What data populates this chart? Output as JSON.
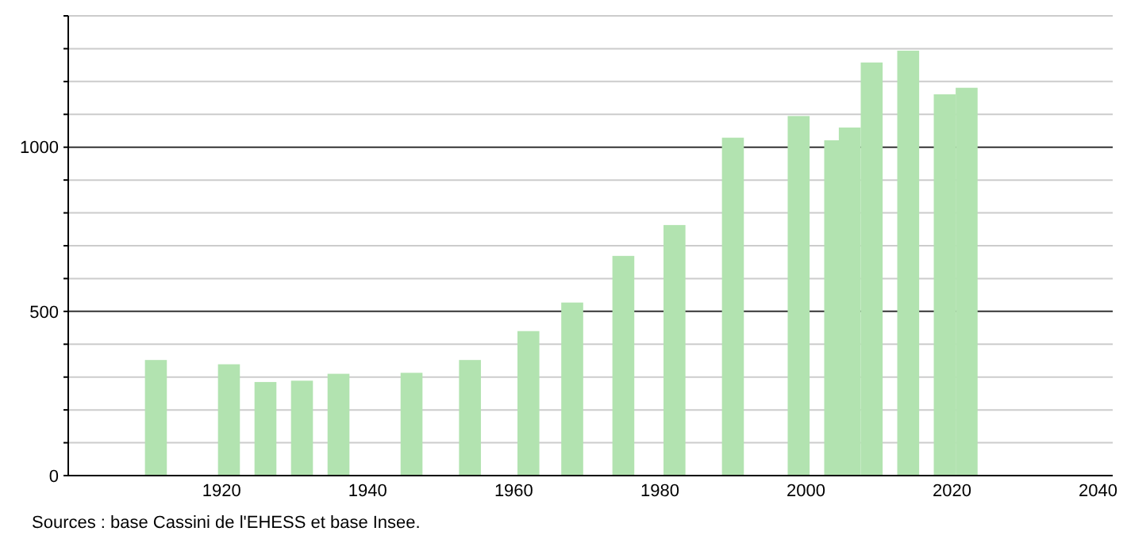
{
  "chart_data": {
    "type": "bar",
    "x": [
      1911,
      1921,
      1926,
      1931,
      1936,
      1946,
      1954,
      1962,
      1968,
      1975,
      1982,
      1990,
      1999,
      2004,
      2006,
      2009,
      2014,
      2019,
      2022
    ],
    "values": [
      352,
      339,
      285,
      289,
      310,
      313,
      352,
      440,
      527,
      669,
      763,
      1029,
      1095,
      1021,
      1060,
      1258,
      1294,
      1161,
      1181
    ],
    "color": "#b2e3b0",
    "xlim": [
      1899,
      2042
    ],
    "xticks": [
      1920,
      1940,
      1960,
      1980,
      2000,
      2020,
      2040
    ],
    "ylim": [
      0,
      1400
    ],
    "yticks": [
      0,
      {
        "value": 100,
        "label": null
      },
      {
        "value": 200,
        "label": null
      },
      {
        "value": 300,
        "label": null
      },
      {
        "value": 400,
        "label": null
      },
      500,
      {
        "value": 600,
        "label": null
      },
      {
        "value": 700,
        "label": null
      },
      {
        "value": 800,
        "label": null
      },
      {
        "value": 900,
        "label": null
      },
      1000,
      {
        "value": 1100,
        "label": null
      },
      {
        "value": 1200,
        "label": null
      },
      {
        "value": 1300,
        "label": null
      },
      {
        "value": 1400,
        "label": null
      }
    ],
    "grid": "y",
    "annotations": [
      "Sources : base Cassini de l'EHESS et base Insee."
    ]
  }
}
